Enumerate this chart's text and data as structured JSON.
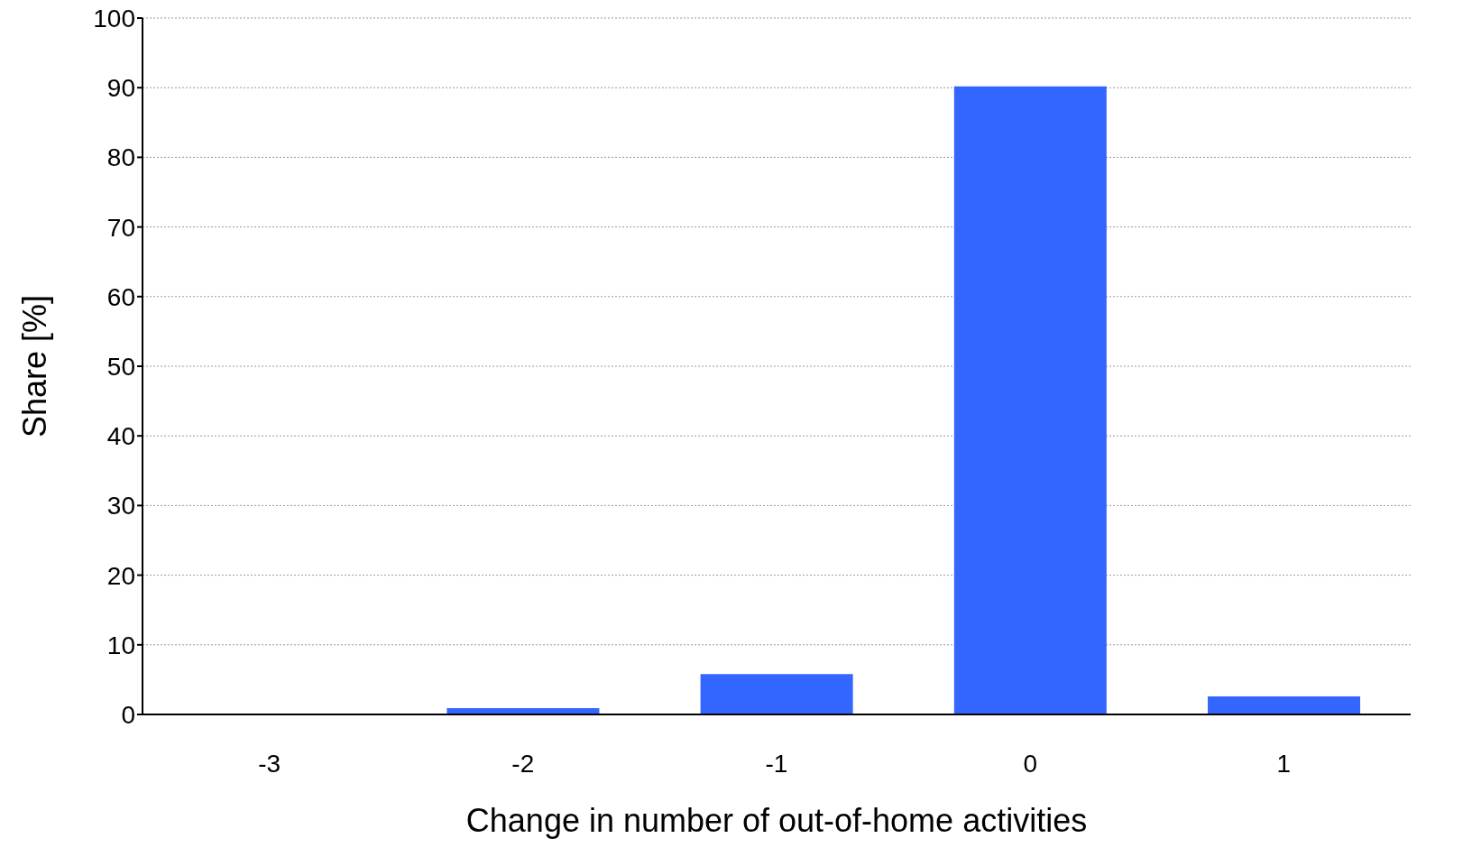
{
  "chart_data": {
    "type": "bar",
    "xlabel": "Change in number of out-of-home activities",
    "ylabel": "Share [%]",
    "categories": [
      "-3",
      "-2",
      "-1",
      "0",
      "1"
    ],
    "values": [
      0,
      0.9,
      5.8,
      90.2,
      2.6
    ],
    "color": "#3366ff",
    "ylim": [
      0,
      100
    ],
    "yticks": [
      0,
      10,
      20,
      30,
      40,
      50,
      60,
      70,
      80,
      90,
      100
    ],
    "grid": "y"
  }
}
